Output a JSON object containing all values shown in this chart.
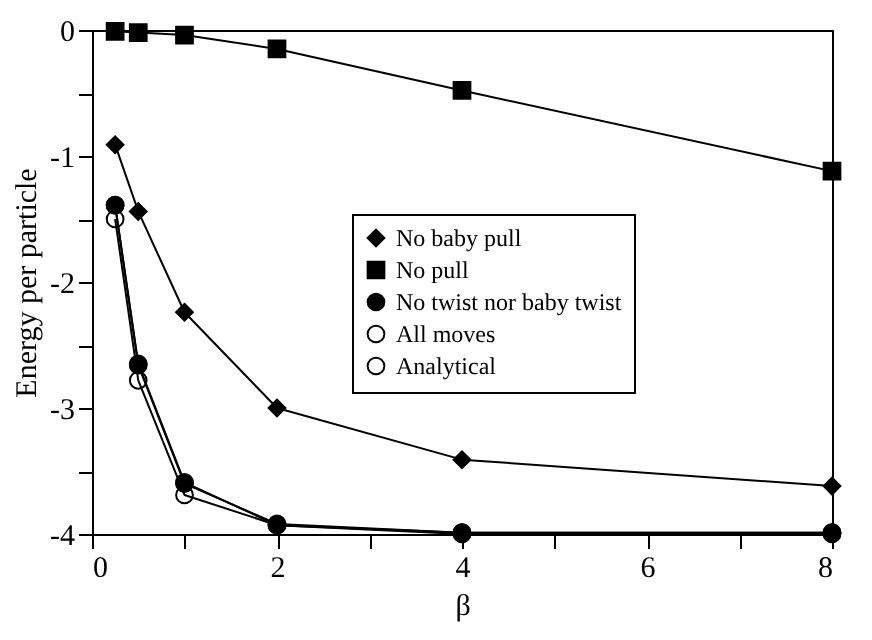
{
  "chart_data": {
    "type": "line",
    "xlabel": "β",
    "ylabel": "Energy per particle",
    "x": [
      0.25,
      0.5,
      1,
      2,
      4,
      8
    ],
    "series": [
      {
        "name": "No baby pull",
        "color": "#000000",
        "marker": "diamond",
        "values": [
          -0.91,
          -1.44,
          -2.24,
          -3.0,
          -3.41,
          -3.62
        ]
      },
      {
        "name": "No pull",
        "color": "#000000",
        "marker": "square",
        "values": [
          -0.01,
          -0.02,
          -0.04,
          -0.15,
          -0.48,
          -1.12
        ]
      },
      {
        "name": "No twist nor baby twist",
        "color": "#000000",
        "marker": "circle",
        "values": [
          -1.39,
          -2.65,
          -3.59,
          -3.93,
          -3.99,
          -3.99
        ]
      },
      {
        "name": "All moves",
        "color": "#000000",
        "marker": "circle",
        "values": [
          -1.39,
          -2.66,
          -3.6,
          -3.92,
          -3.99,
          -3.99
        ]
      },
      {
        "name": "Analytical",
        "color": "#000000",
        "marker": "circle",
        "values": [
          -1.5,
          -2.78,
          -3.69,
          -3.93,
          -4.0,
          -4.0
        ]
      }
    ],
    "xlim": [
      0,
      8
    ],
    "xticks": [
      0,
      {
        "value": 1,
        "label": null
      },
      2,
      {
        "value": 3,
        "label": null
      },
      4,
      {
        "value": 5,
        "label": null
      },
      6,
      {
        "value": 7,
        "label": null
      },
      8
    ],
    "ylim": [
      -4,
      0
    ],
    "yticks": [
      -4,
      {
        "value": -3.5,
        "label": null
      },
      -3,
      {
        "value": -2.5,
        "label": null
      },
      -2,
      {
        "value": -1.5,
        "label": null
      },
      -1,
      {
        "value": -0.5,
        "label": null
      },
      0
    ],
    "grid": false,
    "legend": "center",
    "line_style": "solid"
  }
}
